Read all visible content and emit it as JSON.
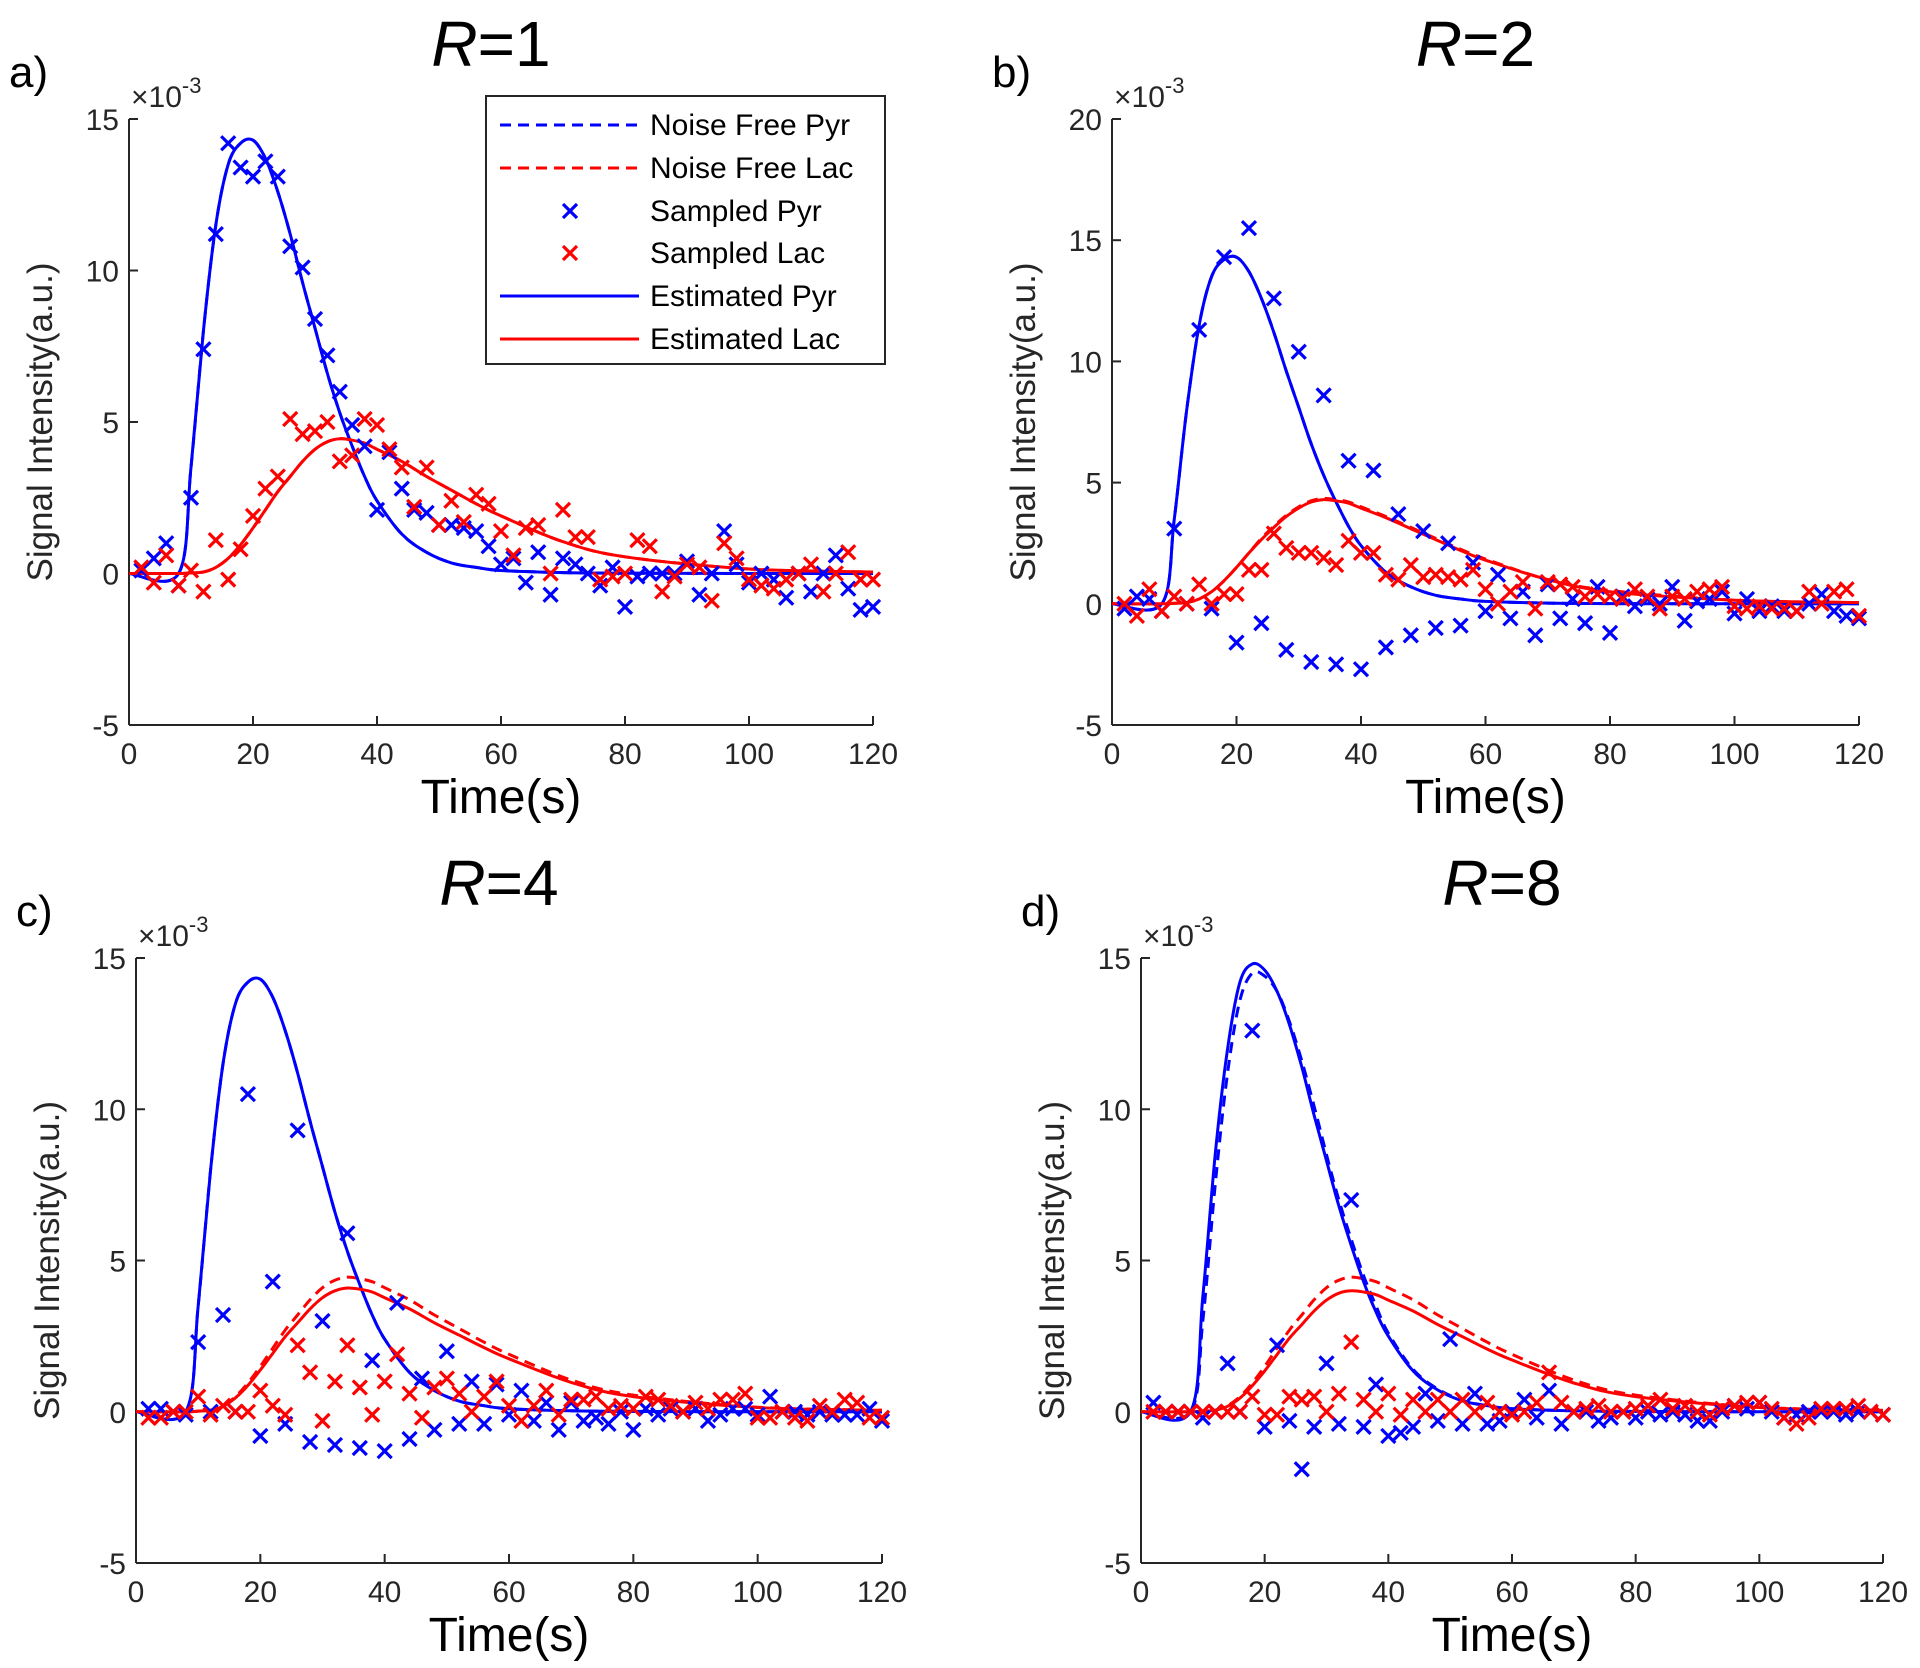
{
  "chart_data": [
    {
      "type": "line",
      "panel_label": "a)",
      "title_var": "R",
      "title_rest": "=1",
      "xlabel": "Time(s)",
      "ylabel": "Signal Intensity(a.u.)",
      "y_multiplier": "×10",
      "y_multiplier_exp": "-3",
      "xlim": [
        0,
        120
      ],
      "ylim": [
        -5,
        15
      ],
      "xticks": [
        0,
        20,
        40,
        60,
        80,
        100,
        120
      ],
      "yticks": [
        -5,
        0,
        5,
        10,
        15
      ],
      "curve_t": [
        0,
        8,
        10,
        12,
        14,
        16,
        18,
        20,
        22,
        24,
        26,
        28,
        30,
        32,
        34,
        36,
        38,
        40,
        44,
        48,
        52,
        56,
        60,
        70,
        80,
        100,
        120
      ],
      "noise_free_pyr": [
        0,
        0,
        3.5,
        8,
        11.5,
        13.5,
        14.2,
        14.3,
        13.7,
        12.6,
        11.2,
        9.6,
        8.1,
        6.6,
        5.3,
        4.2,
        3.2,
        2.4,
        1.3,
        0.7,
        0.35,
        0.2,
        0.1,
        0.03,
        0.01,
        0,
        0
      ],
      "noise_free_lac": [
        0,
        0,
        0.02,
        0.05,
        0.2,
        0.5,
        0.95,
        1.5,
        2.1,
        2.7,
        3.2,
        3.7,
        4.1,
        4.35,
        4.45,
        4.4,
        4.3,
        4.1,
        3.7,
        3.2,
        2.75,
        2.3,
        1.9,
        1.05,
        0.55,
        0.15,
        0.05
      ],
      "estimated_pyr": [
        0,
        0,
        3.5,
        8,
        11.5,
        13.5,
        14.2,
        14.3,
        13.7,
        12.6,
        11.2,
        9.6,
        8.1,
        6.6,
        5.3,
        4.2,
        3.2,
        2.4,
        1.3,
        0.7,
        0.35,
        0.2,
        0.1,
        0.03,
        0.01,
        0,
        0
      ],
      "estimated_lac": [
        0,
        0,
        0.02,
        0.05,
        0.2,
        0.5,
        0.95,
        1.5,
        2.1,
        2.7,
        3.2,
        3.7,
        4.1,
        4.35,
        4.45,
        4.4,
        4.3,
        4.1,
        3.7,
        3.2,
        2.75,
        2.3,
        1.9,
        1.05,
        0.55,
        0.15,
        0.05
      ],
      "sampled_pyr": [
        0.1,
        0.5,
        1.0,
        -0.4,
        2.5,
        7.4,
        11.2,
        14.2,
        13.4,
        13.1,
        13.6,
        13.1,
        10.8,
        10.1,
        8.4,
        7.2,
        6.0,
        4.9,
        4.2,
        2.1,
        4.0,
        2.8,
        2.1,
        2.0,
        1.6,
        1.6,
        1.5,
        1.4,
        0.9,
        0.3,
        0.5,
        -0.3,
        0.7,
        -0.7,
        0.5,
        0.3,
        0.0,
        -0.4,
        0.2,
        -1.1,
        -0.1,
        0.0,
        0.0,
        0.0,
        0.4,
        -0.7,
        0.0,
        1.4,
        0.3,
        -0.3,
        0.0,
        -0.2,
        -0.8,
        0.0,
        -0.6,
        0.0,
        0.6,
        -0.5,
        -1.2,
        -1.1
      ],
      "sampled_lac": [
        0.2,
        -0.3,
        0.6,
        -0.4,
        0.1,
        -0.6,
        1.1,
        -0.2,
        0.8,
        1.9,
        2.8,
        3.2,
        5.1,
        4.6,
        4.7,
        5.0,
        3.7,
        3.9,
        5.1,
        4.9,
        4.1,
        3.5,
        2.2,
        3.5,
        1.6,
        2.4,
        1.7,
        2.6,
        2.3,
        1.4,
        0.6,
        1.5,
        1.6,
        0.0,
        2.1,
        1.2,
        1.2,
        -0.2,
        -0.1,
        0.0,
        1.1,
        0.9,
        -0.6,
        -0.1,
        0.3,
        0.2,
        -0.9,
        1.0,
        0.5,
        -0.2,
        -0.4,
        -0.5,
        -0.2,
        0.0,
        0.3,
        -0.6,
        0.0,
        0.7,
        -0.2,
        -0.2
      ]
    },
    {
      "type": "line",
      "panel_label": "b)",
      "title_var": "R",
      "title_rest": "=2",
      "xlabel": "Time(s)",
      "ylabel": "Signal Intensity(a.u.)",
      "y_multiplier": "×10",
      "y_multiplier_exp": "-3",
      "xlim": [
        0,
        120
      ],
      "ylim": [
        -5,
        20
      ],
      "xticks": [
        0,
        20,
        40,
        60,
        80,
        100,
        120
      ],
      "yticks": [
        -5,
        0,
        5,
        10,
        15,
        20
      ],
      "curve_t": [
        0,
        8,
        10,
        12,
        14,
        16,
        18,
        20,
        22,
        24,
        26,
        28,
        30,
        32,
        34,
        36,
        38,
        40,
        44,
        48,
        52,
        56,
        60,
        70,
        80,
        100,
        120
      ],
      "noise_free_pyr": [
        0,
        0,
        3.5,
        8,
        11.5,
        13.5,
        14.2,
        14.3,
        13.7,
        12.6,
        11.2,
        9.6,
        8.1,
        6.6,
        5.3,
        4.2,
        3.2,
        2.4,
        1.3,
        0.7,
        0.35,
        0.2,
        0.1,
        0.03,
        0.01,
        0,
        0
      ],
      "noise_free_lac": [
        0,
        0,
        0.02,
        0.05,
        0.2,
        0.5,
        0.95,
        1.5,
        2.1,
        2.7,
        3.2,
        3.65,
        4.0,
        4.25,
        4.35,
        4.3,
        4.2,
        4.0,
        3.6,
        3.15,
        2.7,
        2.25,
        1.85,
        1.0,
        0.55,
        0.15,
        0.05
      ],
      "estimated_pyr": [
        0,
        0,
        3.5,
        8,
        11.5,
        13.5,
        14.2,
        14.3,
        13.7,
        12.6,
        11.2,
        9.6,
        8.1,
        6.6,
        5.3,
        4.2,
        3.2,
        2.4,
        1.3,
        0.7,
        0.35,
        0.2,
        0.1,
        0.03,
        0.01,
        0,
        0
      ],
      "estimated_lac": [
        0,
        0,
        0.02,
        0.05,
        0.2,
        0.5,
        0.95,
        1.5,
        2.1,
        2.65,
        3.15,
        3.6,
        3.95,
        4.2,
        4.3,
        4.25,
        4.15,
        3.95,
        3.55,
        3.1,
        2.65,
        2.2,
        1.8,
        1.0,
        0.5,
        0.15,
        0.05
      ],
      "sampled_pyr": [
        -0.2,
        0.3,
        0.2,
        -0.3,
        3.1,
        0.0,
        11.3,
        -0.2,
        14.3,
        -1.6,
        15.5,
        -0.8,
        12.6,
        -1.9,
        10.4,
        -2.4,
        8.6,
        -2.5,
        5.9,
        -2.7,
        5.5,
        -1.8,
        3.7,
        -1.3,
        3.0,
        -1.0,
        2.5,
        -0.9,
        1.7,
        -0.3,
        1.2,
        -0.6,
        0.5,
        -1.3,
        0.8,
        -0.6,
        0.2,
        -0.8,
        0.7,
        -1.2,
        0.3,
        -0.1,
        0.2,
        0.0,
        0.7,
        -0.7,
        0.1,
        0.2,
        0.5,
        -0.4,
        0.2,
        -0.3,
        -0.1,
        -0.3,
        -0.3,
        0.0,
        0.4,
        -0.3,
        -0.5,
        -0.6
      ],
      "sampled_lac": [
        0.0,
        -0.5,
        0.6,
        -0.3,
        0.3,
        0.0,
        0.8,
        0.0,
        0.4,
        0.4,
        1.4,
        1.4,
        2.9,
        2.3,
        2.1,
        2.1,
        1.9,
        1.6,
        2.6,
        2.1,
        2.1,
        1.2,
        1.0,
        1.6,
        1.1,
        1.2,
        1.1,
        1.0,
        1.4,
        0.6,
        0.0,
        0.5,
        0.9,
        -0.2,
        0.9,
        0.8,
        0.7,
        0.3,
        0.4,
        0.3,
        0.2,
        0.6,
        0.3,
        -0.2,
        0.3,
        0.2,
        0.5,
        0.6,
        0.7,
        -0.1,
        -0.2,
        -0.1,
        -0.2,
        -0.2,
        -0.3,
        0.5,
        0.0,
        0.5,
        0.6,
        -0.5
      ]
    },
    {
      "type": "line",
      "panel_label": "c)",
      "title_var": "R",
      "title_rest": "=4",
      "xlabel": "Time(s)",
      "ylabel": "Signal Intensity(a.u.)",
      "y_multiplier": "×10",
      "y_multiplier_exp": "-3",
      "xlim": [
        0,
        120
      ],
      "ylim": [
        -5,
        15
      ],
      "xticks": [
        0,
        20,
        40,
        60,
        80,
        100,
        120
      ],
      "yticks": [
        -5,
        0,
        5,
        10,
        15
      ],
      "curve_t": [
        0,
        8,
        10,
        12,
        14,
        16,
        18,
        20,
        22,
        24,
        26,
        28,
        30,
        32,
        34,
        36,
        38,
        40,
        44,
        48,
        52,
        56,
        60,
        70,
        80,
        100,
        120
      ],
      "noise_free_pyr": [
        0,
        0,
        3.5,
        8,
        11.5,
        13.5,
        14.2,
        14.3,
        13.7,
        12.6,
        11.2,
        9.6,
        8.1,
        6.6,
        5.3,
        4.2,
        3.2,
        2.4,
        1.3,
        0.7,
        0.35,
        0.2,
        0.1,
        0.03,
        0.01,
        0,
        0
      ],
      "noise_free_lac": [
        0,
        0,
        0.02,
        0.05,
        0.2,
        0.5,
        0.95,
        1.5,
        2.1,
        2.7,
        3.2,
        3.7,
        4.1,
        4.35,
        4.45,
        4.4,
        4.3,
        4.1,
        3.7,
        3.2,
        2.75,
        2.3,
        1.9,
        1.05,
        0.55,
        0.15,
        0.05
      ],
      "estimated_pyr": [
        0,
        0,
        3.5,
        8,
        11.5,
        13.5,
        14.2,
        14.3,
        13.7,
        12.6,
        11.2,
        9.6,
        8.1,
        6.6,
        5.3,
        4.2,
        3.2,
        2.4,
        1.3,
        0.7,
        0.35,
        0.2,
        0.1,
        0.03,
        0.01,
        0,
        0
      ],
      "estimated_lac": [
        0,
        0,
        0.02,
        0.05,
        0.18,
        0.46,
        0.87,
        1.38,
        1.93,
        2.48,
        2.94,
        3.4,
        3.77,
        4.0,
        4.09,
        4.05,
        3.96,
        3.77,
        3.4,
        2.94,
        2.53,
        2.12,
        1.75,
        0.97,
        0.5,
        0.14,
        0.05
      ],
      "sampled_pyr": [
        0.1,
        0.1,
        0.0,
        -0.1,
        2.3,
        0.0,
        3.2,
        0.0,
        10.5,
        -0.8,
        4.3,
        -0.4,
        9.3,
        -1.0,
        3.0,
        -1.1,
        5.9,
        -1.2,
        1.7,
        -1.3,
        3.6,
        -0.9,
        1.1,
        -0.6,
        2.0,
        -0.4,
        1.0,
        -0.4,
        0.9,
        -0.1,
        0.7,
        -0.3,
        0.3,
        -0.6,
        0.3,
        -0.3,
        -0.2,
        -0.4,
        0.0,
        -0.6,
        0.1,
        -0.1,
        0.1,
        0.0,
        0.1,
        -0.3,
        -0.1,
        0.1,
        0.1,
        -0.1,
        0.5,
        0.0,
        0.0,
        -0.1,
        0.0,
        -0.1,
        -0.1,
        -0.1,
        0.1,
        -0.3
      ],
      "sampled_lac": [
        -0.2,
        -0.2,
        0.0,
        0.0,
        0.5,
        -0.1,
        0.2,
        0.0,
        0.0,
        0.7,
        0.2,
        -0.1,
        2.2,
        1.3,
        -0.3,
        1.0,
        2.2,
        0.8,
        -0.1,
        1.0,
        1.9,
        0.6,
        -0.2,
        0.8,
        1.1,
        0.6,
        0.0,
        0.5,
        1.0,
        0.2,
        -0.3,
        0.2,
        0.7,
        -0.1,
        0.4,
        0.4,
        0.5,
        0.1,
        0.2,
        0.1,
        0.5,
        0.4,
        0.2,
        0.0,
        0.3,
        0.1,
        0.4,
        0.4,
        0.6,
        -0.2,
        -0.2,
        0.0,
        -0.2,
        -0.3,
        0.2,
        0.0,
        0.4,
        0.3,
        -0.2,
        -0.2
      ]
    },
    {
      "type": "line",
      "panel_label": "d)",
      "title_var": "R",
      "title_rest": "=8",
      "xlabel": "Time(s)",
      "ylabel": "Signal Intensity(a.u.)",
      "y_multiplier": "×10",
      "y_multiplier_exp": "-3",
      "xlim": [
        0,
        120
      ],
      "ylim": [
        -5,
        15
      ],
      "xticks": [
        0,
        20,
        40,
        60,
        80,
        100,
        120
      ],
      "yticks": [
        -5,
        0,
        5,
        10,
        15
      ],
      "curve_t": [
        0,
        8,
        10,
        12,
        14,
        16,
        18,
        20,
        22,
        24,
        26,
        28,
        30,
        32,
        34,
        36,
        38,
        40,
        44,
        48,
        52,
        56,
        60,
        70,
        80,
        100,
        120
      ],
      "noise_free_pyr": [
        0,
        0,
        3.0,
        7.5,
        11.2,
        13.6,
        14.5,
        14.4,
        13.9,
        12.9,
        11.6,
        10.1,
        8.5,
        7.0,
        5.7,
        4.5,
        3.5,
        2.6,
        1.4,
        0.75,
        0.38,
        0.2,
        0.1,
        0.03,
        0.01,
        0,
        0
      ],
      "noise_free_lac": [
        0,
        0,
        0.02,
        0.05,
        0.2,
        0.5,
        0.95,
        1.5,
        2.1,
        2.7,
        3.2,
        3.7,
        4.1,
        4.35,
        4.45,
        4.4,
        4.3,
        4.1,
        3.7,
        3.2,
        2.75,
        2.3,
        1.9,
        1.05,
        0.55,
        0.15,
        0.05
      ],
      "estimated_pyr": [
        0,
        0,
        3.8,
        8.5,
        12,
        14.2,
        14.8,
        14.6,
        13.9,
        12.8,
        11.4,
        9.8,
        8.3,
        6.8,
        5.5,
        4.3,
        3.3,
        2.5,
        1.35,
        0.72,
        0.36,
        0.2,
        0.1,
        0.03,
        0.01,
        0,
        0
      ],
      "estimated_lac": [
        0,
        0,
        0.02,
        0.05,
        0.18,
        0.45,
        0.86,
        1.35,
        1.89,
        2.43,
        2.88,
        3.33,
        3.69,
        3.92,
        4.0,
        3.96,
        3.87,
        3.69,
        3.33,
        2.88,
        2.48,
        2.07,
        1.71,
        0.95,
        0.5,
        0.14,
        0.05
      ],
      "sampled_pyr": [
        0.3,
        0.0,
        0.0,
        0.0,
        -0.2,
        0.0,
        1.6,
        0.0,
        12.6,
        -0.5,
        2.2,
        -0.3,
        -1.9,
        -0.5,
        1.6,
        -0.4,
        7.0,
        -0.5,
        0.9,
        -0.8,
        -0.7,
        -0.5,
        0.6,
        -0.3,
        2.4,
        -0.4,
        0.6,
        -0.4,
        -0.3,
        0.0,
        0.4,
        -0.2,
        0.7,
        -0.4,
        0.0,
        0.0,
        -0.3,
        -0.2,
        0.0,
        -0.2,
        0.0,
        -0.1,
        0.0,
        -0.1,
        -0.3,
        -0.3,
        0.0,
        0.2,
        0.1,
        0.3,
        0.0,
        -0.2,
        -0.1,
        0.0,
        0.0,
        0.0,
        -0.1,
        0.0,
        0.0,
        -0.1
      ],
      "sampled_lac": [
        0.0,
        0.0,
        0.0,
        0.0,
        0.0,
        0.0,
        0.0,
        0.0,
        0.5,
        -0.1,
        -0.1,
        0.5,
        0.4,
        0.5,
        0.0,
        0.6,
        2.3,
        0.4,
        0.0,
        0.6,
        -0.1,
        0.4,
        0.0,
        0.4,
        0.0,
        0.4,
        0.0,
        0.3,
        0.0,
        -0.1,
        0.0,
        0.3,
        1.3,
        0.3,
        0.0,
        0.1,
        0.2,
        0.0,
        0.0,
        0.1,
        0.2,
        0.4,
        0.1,
        0.2,
        0.0,
        -0.1,
        0.1,
        0.2,
        0.3,
        0.3,
        0.1,
        -0.2,
        -0.4,
        -0.2,
        0.1,
        0.1,
        0.1,
        0.2,
        0.0,
        -0.1
      ]
    }
  ],
  "sample_t": [
    2,
    4,
    6,
    8,
    10,
    12,
    14,
    16,
    18,
    20,
    22,
    24,
    26,
    28,
    30,
    32,
    34,
    36,
    38,
    40,
    42,
    44,
    46,
    48,
    50,
    52,
    54,
    56,
    58,
    60,
    62,
    64,
    66,
    68,
    70,
    72,
    74,
    76,
    78,
    80,
    82,
    84,
    86,
    88,
    90,
    92,
    94,
    96,
    98,
    100,
    102,
    104,
    106,
    108,
    110,
    112,
    114,
    116,
    118,
    120
  ],
  "legend": {
    "location": "top-right of panel a",
    "entries": [
      {
        "label": "Noise Free Pyr",
        "style": "dashed",
        "color": "#0000ff"
      },
      {
        "label": "Noise Free Lac",
        "style": "dashed",
        "color": "#ff0000"
      },
      {
        "label": "Sampled Pyr",
        "style": "marker-x",
        "color": "#0000ff"
      },
      {
        "label": "Sampled Lac",
        "style": "marker-x",
        "color": "#ff0000"
      },
      {
        "label": "Estimated Pyr",
        "style": "solid",
        "color": "#0000ff"
      },
      {
        "label": "Estimated Lac",
        "style": "solid",
        "color": "#ff0000"
      }
    ]
  },
  "colors": {
    "pyr": "#0000ff",
    "lac": "#ff0000",
    "axis": "#262626"
  }
}
